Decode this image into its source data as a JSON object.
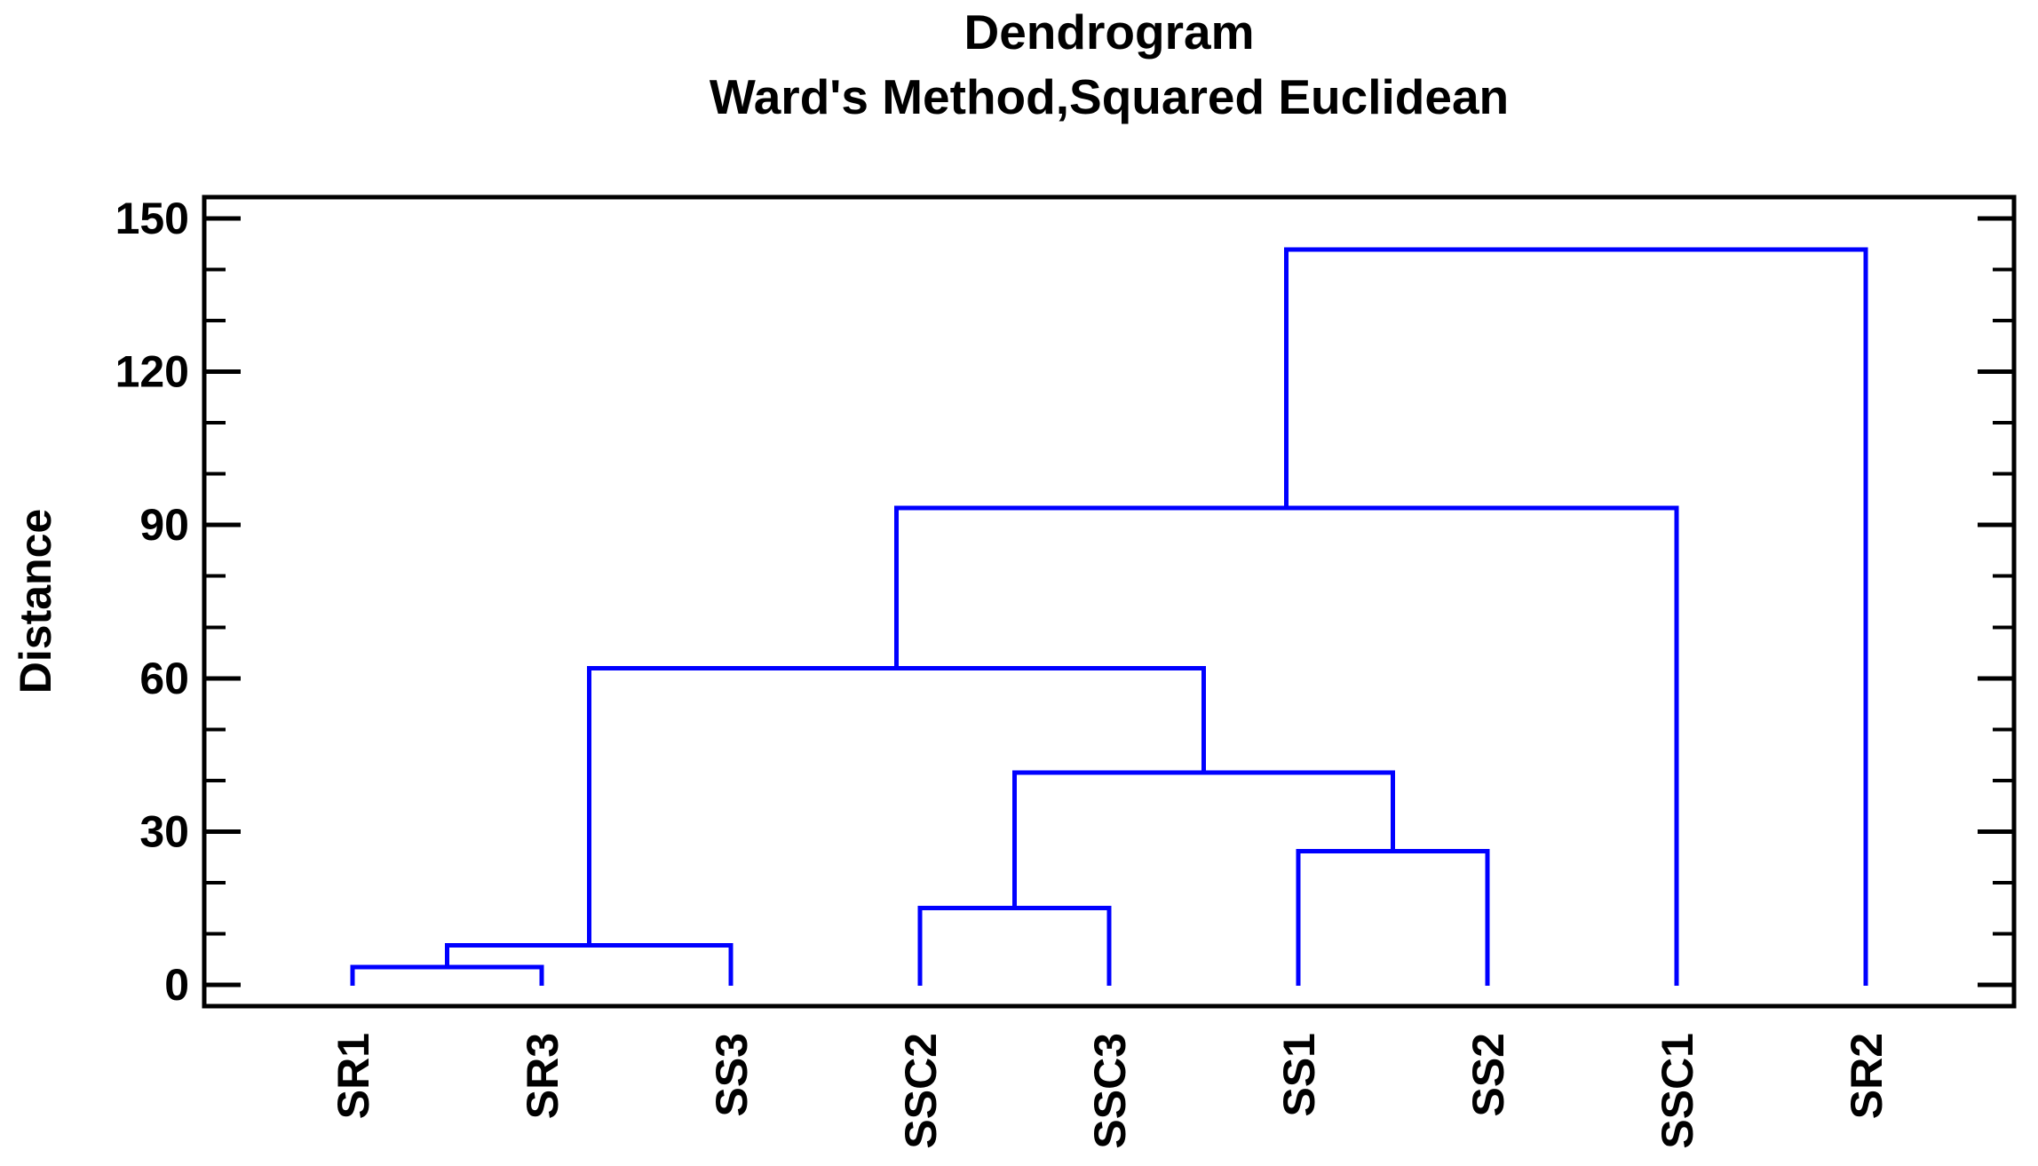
{
  "header": {
    "title": "Dendrogram",
    "subtitle": "Ward's Method,Squared Euclidean"
  },
  "y_axis": {
    "label": "Distance",
    "tick_values": [
      0,
      30,
      60,
      90,
      120,
      150
    ],
    "minor_tick_step": 10,
    "min": 0,
    "max": 150
  },
  "x_axis": {
    "leaf_labels": [
      "SR1",
      "SR3",
      "SS3",
      "SSC2",
      "SSC3",
      "SS1",
      "SS2",
      "SSC1",
      "SR2"
    ]
  },
  "colors": {
    "tree_line": "#0000FF",
    "axis_line": "#000000",
    "text": "#000000",
    "background": "#FFFFFF"
  },
  "chart_data": {
    "type": "dendrogram",
    "title": "Dendrogram",
    "subtitle": "Ward's Method,Squared Euclidean",
    "ylabel": "Distance",
    "ylim": [
      0,
      150
    ],
    "yticks": [
      0,
      30,
      60,
      90,
      120,
      150
    ],
    "grid": false,
    "legend": false,
    "leaves": [
      "SR1",
      "SR3",
      "SS3",
      "SSC2",
      "SSC3",
      "SS1",
      "SS2",
      "SSC1",
      "SR2"
    ],
    "merges": [
      {
        "a": 0,
        "b": 1,
        "height": 3.5
      },
      {
        "a": 9,
        "b": 2,
        "height": 7.7
      },
      {
        "a": 3,
        "b": 4,
        "height": 15.0
      },
      {
        "a": 5,
        "b": 6,
        "height": 26.2
      },
      {
        "a": 11,
        "b": 12,
        "height": 41.5
      },
      {
        "a": 10,
        "b": 13,
        "height": 62.0
      },
      {
        "a": 14,
        "b": 7,
        "height": 93.3
      },
      {
        "a": 15,
        "b": 8,
        "height": 143.9
      }
    ],
    "merge_note": "leaf indices 0-8; merge i creates node index 9+i; root height 143.9"
  }
}
